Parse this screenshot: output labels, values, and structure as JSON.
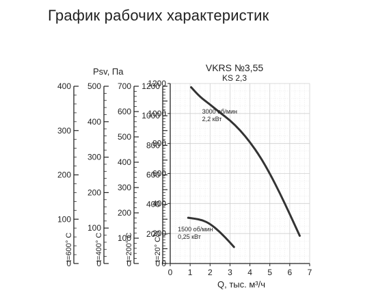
{
  "page": {
    "title": "График рабочих характеристик"
  },
  "chart_data": {
    "type": "line",
    "model_title": "VKRS №3,55",
    "model_subtitle": "KS 2,3",
    "xlabel": "Q, тыс. м³/ч",
    "xlim": [
      0,
      7
    ],
    "x_ticks": [
      "0",
      "1",
      "2",
      "3",
      "4",
      "5",
      "6",
      "7"
    ],
    "ylim": [
      0,
      1200
    ],
    "y_ticks": [
      "0",
      "200",
      "400",
      "600",
      "800",
      "1000",
      "1200"
    ],
    "grid": true,
    "series": [
      {
        "name": "3000 об/мин 2,2 кВт",
        "label_lines": [
          "3000 об/мин",
          "2,2 кВт"
        ],
        "color": "#333333",
        "x": [
          1.05,
          1.5,
          2.0,
          2.5,
          3.0,
          3.5,
          4.0,
          4.5,
          5.0,
          5.5,
          6.0,
          6.5
        ],
        "y": [
          1175,
          1110,
          1060,
          1005,
          955,
          890,
          810,
          715,
          600,
          470,
          330,
          185
        ]
      },
      {
        "name": "1500 об/мин 0,25 кВт",
        "label_lines": [
          "1500 об/мин",
          "0,25 кВт"
        ],
        "color": "#333333",
        "x": [
          0.9,
          1.2,
          1.6,
          2.0,
          2.5,
          3.0,
          3.2
        ],
        "y": [
          305,
          300,
          290,
          265,
          210,
          140,
          110
        ]
      }
    ],
    "secondary_axes": [
      {
        "label": "t=600° C",
        "ticks": [
          "0",
          "100",
          "200",
          "300",
          "400"
        ],
        "max": 400,
        "title": ""
      },
      {
        "label": "t=400° C",
        "ticks": [
          "0",
          "100",
          "200",
          "300",
          "400",
          "500"
        ],
        "max": 500,
        "title": "Psv, Па"
      },
      {
        "label": "t=200° C",
        "ticks": [
          "0",
          "100",
          "200",
          "300",
          "400",
          "500",
          "600",
          "700"
        ],
        "max": 700,
        "title": ""
      },
      {
        "label": "t=20° C",
        "ticks": [
          "0",
          "200",
          "400",
          "600",
          "800",
          "1000",
          "1200"
        ],
        "max": 1200,
        "title": ""
      }
    ]
  }
}
